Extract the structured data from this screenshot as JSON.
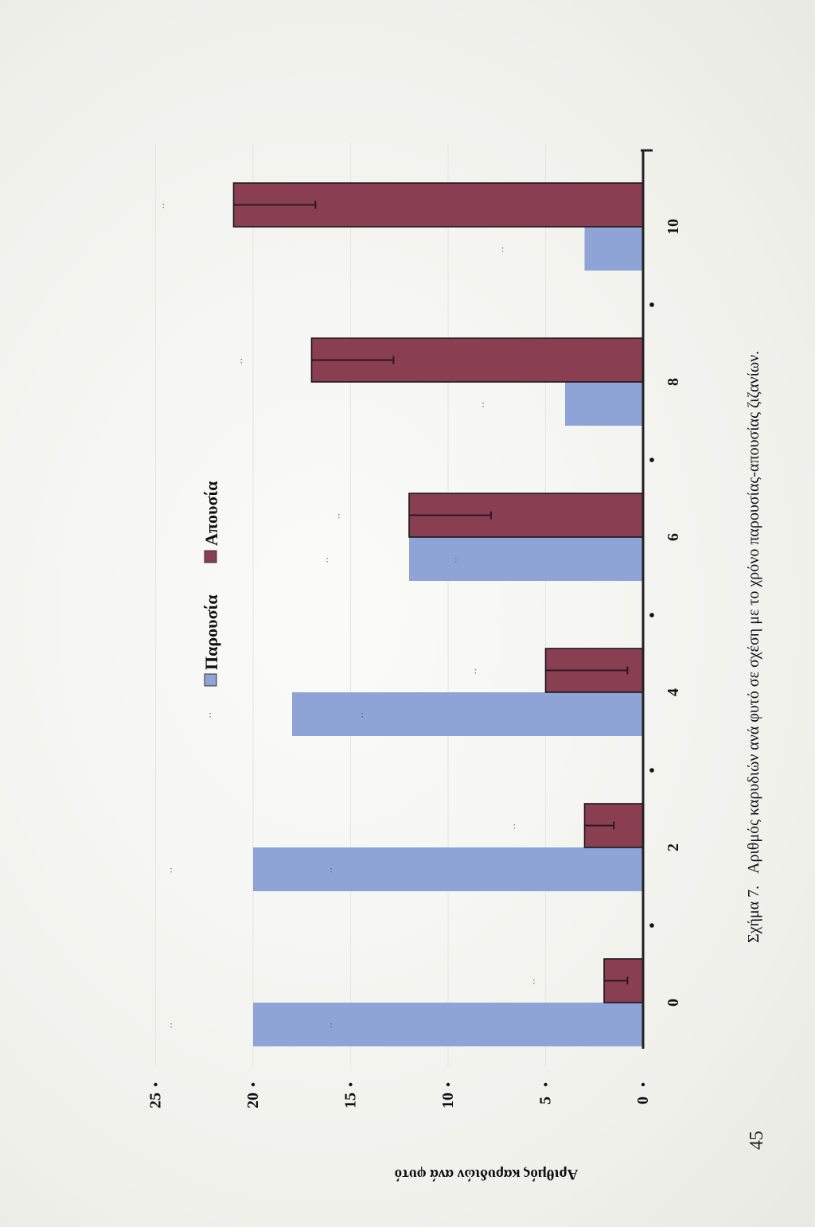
{
  "chart_data": {
    "type": "bar",
    "categories": [
      "0",
      "2",
      "4",
      "6",
      "8",
      "10"
    ],
    "series": [
      {
        "name": "Παρουσία",
        "color": "#8ea3d6",
        "values": [
          20,
          20,
          18,
          12,
          4,
          3
        ],
        "errors": [
          0,
          0,
          0,
          0,
          0,
          0
        ],
        "significance": [
          ":",
          ":",
          ":",
          ":",
          ":",
          ":"
        ]
      },
      {
        "name": "Απουσία",
        "color": "#8a3e52",
        "values": [
          2,
          3,
          5,
          12,
          17,
          21
        ],
        "errors": [
          1.2,
          1.5,
          4.2,
          4.2,
          4.2,
          4.2
        ],
        "significance": [
          ":",
          ":",
          ":",
          ":",
          ":",
          ":"
        ]
      }
    ],
    "ylabel": "Αριθμός καρυδιών ανά φυτό",
    "xlabel": "",
    "ylim": [
      0,
      25
    ],
    "yticks": [
      "0",
      "5",
      "10",
      "15",
      "20",
      "25"
    ],
    "orientation": "rotated-90",
    "legend": "top"
  },
  "caption": {
    "label": "Σχήμα  7.",
    "text": "Αριθμός καρυδιών ανά φυτό σε σχέση με το χρόνο παρουσίας-απουσίας ζιζανίων."
  },
  "page_number": "45"
}
